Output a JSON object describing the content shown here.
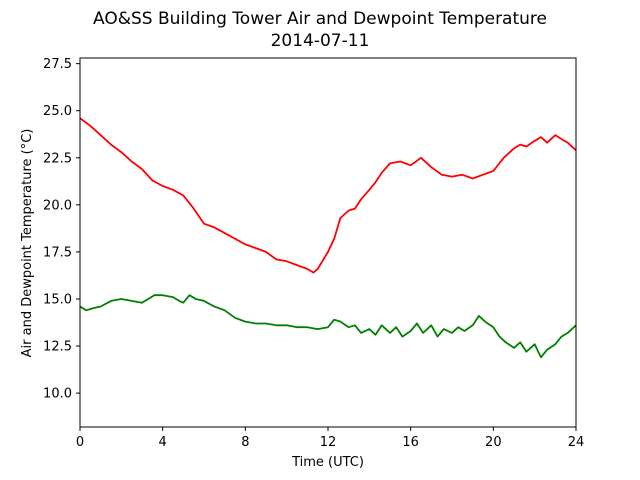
{
  "chart_data": {
    "type": "line",
    "title": "AO&SS Building Tower Air and Dewpoint Temperature",
    "subtitle": "2014-07-11",
    "xlabel": "Time (UTC)",
    "ylabel": "Air and Dewpoint Temperature (°C)",
    "xlim": [
      0,
      24
    ],
    "ylim": [
      8.2,
      27.8
    ],
    "x_ticks": [
      0,
      4,
      8,
      12,
      16,
      20,
      24
    ],
    "x_tick_labels": [
      "0",
      "4",
      "8",
      "12",
      "16",
      "20",
      "24"
    ],
    "y_ticks": [
      10.0,
      12.5,
      15.0,
      17.5,
      20.0,
      22.5,
      25.0,
      27.5
    ],
    "y_tick_labels": [
      "10.0",
      "12.5",
      "15.0",
      "17.5",
      "20.0",
      "22.5",
      "25.0",
      "27.5"
    ],
    "grid": false,
    "series": [
      {
        "color": "#ff0000",
        "x": [
          0,
          0.5,
          1,
          1.5,
          2,
          2.5,
          3,
          3.5,
          4,
          4.5,
          5,
          5.5,
          6,
          6.5,
          7,
          7.5,
          8,
          8.5,
          9,
          9.5,
          10,
          10.5,
          11,
          11.3,
          11.5,
          12,
          12.3,
          12.6,
          13,
          13.3,
          13.6,
          14,
          14.3,
          14.6,
          15,
          15.5,
          16,
          16.5,
          17,
          17.5,
          18,
          18.5,
          19,
          19.5,
          20,
          20.5,
          21,
          21.3,
          21.6,
          22,
          22.3,
          22.6,
          23,
          23.3,
          23.6,
          24
        ],
        "y": [
          24.6,
          24.2,
          23.7,
          23.2,
          22.8,
          22.3,
          21.9,
          21.3,
          21.0,
          20.8,
          20.5,
          19.8,
          19.0,
          18.8,
          18.5,
          18.2,
          17.9,
          17.7,
          17.5,
          17.1,
          17.0,
          16.8,
          16.6,
          16.4,
          16.6,
          17.5,
          18.2,
          19.3,
          19.7,
          19.8,
          20.3,
          20.8,
          21.2,
          21.7,
          22.2,
          22.3,
          22.1,
          22.5,
          22.0,
          21.6,
          21.5,
          21.6,
          21.4,
          21.6,
          21.8,
          22.5,
          23.0,
          23.2,
          23.1,
          23.4,
          23.6,
          23.3,
          23.7,
          23.5,
          23.3,
          22.9
        ]
      },
      {
        "color": "#008000",
        "x": [
          0,
          0.3,
          0.6,
          1,
          1.5,
          2,
          2.5,
          3,
          3.3,
          3.6,
          4,
          4.5,
          4.8,
          5,
          5.3,
          5.6,
          6,
          6.5,
          7,
          7.5,
          8,
          8.5,
          9,
          9.5,
          10,
          10.5,
          11,
          11.5,
          12,
          12.3,
          12.6,
          13,
          13.3,
          13.6,
          14,
          14.3,
          14.6,
          15,
          15.3,
          15.6,
          16,
          16.3,
          16.6,
          17,
          17.3,
          17.6,
          18,
          18.3,
          18.6,
          19,
          19.3,
          19.6,
          20,
          20.3,
          20.6,
          21,
          21.3,
          21.6,
          22,
          22.3,
          22.6,
          23,
          23.3,
          23.6,
          24
        ],
        "y": [
          14.6,
          14.4,
          14.5,
          14.6,
          14.9,
          15.0,
          14.9,
          14.8,
          15.0,
          15.2,
          15.2,
          15.1,
          14.9,
          14.8,
          15.2,
          15.0,
          14.9,
          14.6,
          14.4,
          14.0,
          13.8,
          13.7,
          13.7,
          13.6,
          13.6,
          13.5,
          13.5,
          13.4,
          13.5,
          13.9,
          13.8,
          13.5,
          13.6,
          13.2,
          13.4,
          13.1,
          13.6,
          13.2,
          13.5,
          13.0,
          13.3,
          13.7,
          13.2,
          13.6,
          13.0,
          13.4,
          13.2,
          13.5,
          13.3,
          13.6,
          14.1,
          13.8,
          13.5,
          13.0,
          12.7,
          12.4,
          12.7,
          12.2,
          12.6,
          11.9,
          12.3,
          12.6,
          13.0,
          13.2,
          13.6
        ]
      }
    ]
  }
}
